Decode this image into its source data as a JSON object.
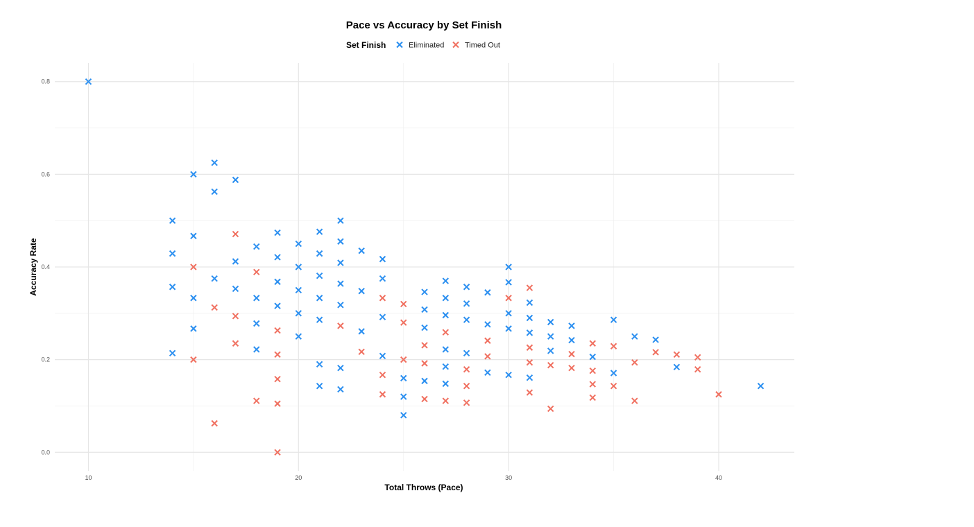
{
  "chart_data": {
    "type": "scatter",
    "title": "Pace vs Accuracy by Set Finish",
    "xlabel": "Total Throws (Pace)",
    "ylabel": "Accuracy Rate",
    "xlim": [
      8.4,
      43.6
    ],
    "ylim": [
      -0.04,
      0.84
    ],
    "x_ticks": [
      "10",
      "20",
      "30",
      "40"
    ],
    "x_tick_values": [
      10,
      20,
      30,
      40
    ],
    "y_ticks": [
      "0.0",
      "0.2",
      "0.4",
      "0.6",
      "0.8"
    ],
    "y_tick_values": [
      0.0,
      0.2,
      0.4,
      0.6,
      0.8
    ],
    "grid": true,
    "legend": {
      "title": "Set Finish",
      "placement": "top"
    },
    "marker": "x",
    "series": [
      {
        "name": "Eliminated",
        "color": "#2b8ff0",
        "points": [
          [
            10,
            0.8
          ],
          [
            14,
            0.5
          ],
          [
            14,
            0.429
          ],
          [
            14,
            0.357
          ],
          [
            14,
            0.214
          ],
          [
            15,
            0.6
          ],
          [
            15,
            0.467
          ],
          [
            15,
            0.333
          ],
          [
            15,
            0.267
          ],
          [
            16,
            0.625
          ],
          [
            16,
            0.5625
          ],
          [
            16,
            0.375
          ],
          [
            17,
            0.588
          ],
          [
            17,
            0.412
          ],
          [
            17,
            0.353
          ],
          [
            18,
            0.444
          ],
          [
            18,
            0.333
          ],
          [
            18,
            0.278
          ],
          [
            18,
            0.222
          ],
          [
            19,
            0.474
          ],
          [
            19,
            0.421
          ],
          [
            19,
            0.368
          ],
          [
            19,
            0.316
          ],
          [
            20,
            0.45
          ],
          [
            20,
            0.4
          ],
          [
            20,
            0.35
          ],
          [
            20,
            0.3
          ],
          [
            20,
            0.25
          ],
          [
            21,
            0.476
          ],
          [
            21,
            0.429
          ],
          [
            21,
            0.381
          ],
          [
            21,
            0.333
          ],
          [
            21,
            0.286
          ],
          [
            21,
            0.19
          ],
          [
            21,
            0.143
          ],
          [
            22,
            0.5
          ],
          [
            22,
            0.455
          ],
          [
            22,
            0.409
          ],
          [
            22,
            0.364
          ],
          [
            22,
            0.318
          ],
          [
            22,
            0.182
          ],
          [
            22,
            0.136
          ],
          [
            23,
            0.435
          ],
          [
            23,
            0.348
          ],
          [
            23,
            0.261
          ],
          [
            24,
            0.417
          ],
          [
            24,
            0.375
          ],
          [
            24,
            0.292
          ],
          [
            24,
            0.208
          ],
          [
            25,
            0.16
          ],
          [
            25,
            0.12
          ],
          [
            25,
            0.08
          ],
          [
            26,
            0.346
          ],
          [
            26,
            0.308
          ],
          [
            26,
            0.269
          ],
          [
            26,
            0.154
          ],
          [
            27,
            0.37
          ],
          [
            27,
            0.333
          ],
          [
            27,
            0.296
          ],
          [
            27,
            0.222
          ],
          [
            27,
            0.185
          ],
          [
            27,
            0.148
          ],
          [
            28,
            0.357
          ],
          [
            28,
            0.321
          ],
          [
            28,
            0.286
          ],
          [
            28,
            0.214
          ],
          [
            29,
            0.345
          ],
          [
            29,
            0.276
          ],
          [
            29,
            0.172
          ],
          [
            30,
            0.4
          ],
          [
            30,
            0.367
          ],
          [
            30,
            0.3
          ],
          [
            30,
            0.267
          ],
          [
            30,
            0.167
          ],
          [
            31,
            0.323
          ],
          [
            31,
            0.29
          ],
          [
            31,
            0.258
          ],
          [
            31,
            0.161
          ],
          [
            32,
            0.281
          ],
          [
            32,
            0.25
          ],
          [
            32,
            0.219
          ],
          [
            33,
            0.273
          ],
          [
            33,
            0.242
          ],
          [
            34,
            0.206
          ],
          [
            35,
            0.286
          ],
          [
            35,
            0.171
          ],
          [
            36,
            0.25
          ],
          [
            37,
            0.243
          ],
          [
            38,
            0.184
          ],
          [
            42,
            0.143
          ]
        ]
      },
      {
        "name": "Timed Out",
        "color": "#f07060",
        "points": [
          [
            15,
            0.4
          ],
          [
            15,
            0.2
          ],
          [
            16,
            0.3125
          ],
          [
            16,
            0.0625
          ],
          [
            17,
            0.471
          ],
          [
            17,
            0.294
          ],
          [
            17,
            0.235
          ],
          [
            18,
            0.389
          ],
          [
            18,
            0.111
          ],
          [
            19,
            0.263
          ],
          [
            19,
            0.211
          ],
          [
            19,
            0.158
          ],
          [
            19,
            0.105
          ],
          [
            19,
            0.0
          ],
          [
            22,
            0.273
          ],
          [
            23,
            0.217
          ],
          [
            24,
            0.333
          ],
          [
            24,
            0.167
          ],
          [
            24,
            0.125
          ],
          [
            25,
            0.32
          ],
          [
            25,
            0.28
          ],
          [
            25,
            0.2
          ],
          [
            26,
            0.231
          ],
          [
            26,
            0.192
          ],
          [
            26,
            0.115
          ],
          [
            27,
            0.259
          ],
          [
            27,
            0.111
          ],
          [
            28,
            0.179
          ],
          [
            28,
            0.143
          ],
          [
            28,
            0.107
          ],
          [
            29,
            0.241
          ],
          [
            29,
            0.207
          ],
          [
            30,
            0.333
          ],
          [
            31,
            0.355
          ],
          [
            31,
            0.226
          ],
          [
            31,
            0.194
          ],
          [
            31,
            0.129
          ],
          [
            32,
            0.188
          ],
          [
            32,
            0.094
          ],
          [
            33,
            0.212
          ],
          [
            33,
            0.182
          ],
          [
            34,
            0.235
          ],
          [
            34,
            0.176
          ],
          [
            34,
            0.147
          ],
          [
            34,
            0.118
          ],
          [
            35,
            0.229
          ],
          [
            35,
            0.143
          ],
          [
            36,
            0.194
          ],
          [
            36,
            0.111
          ],
          [
            37,
            0.216
          ],
          [
            38,
            0.211
          ],
          [
            39,
            0.205
          ],
          [
            39,
            0.179
          ],
          [
            40,
            0.125
          ]
        ]
      }
    ]
  }
}
